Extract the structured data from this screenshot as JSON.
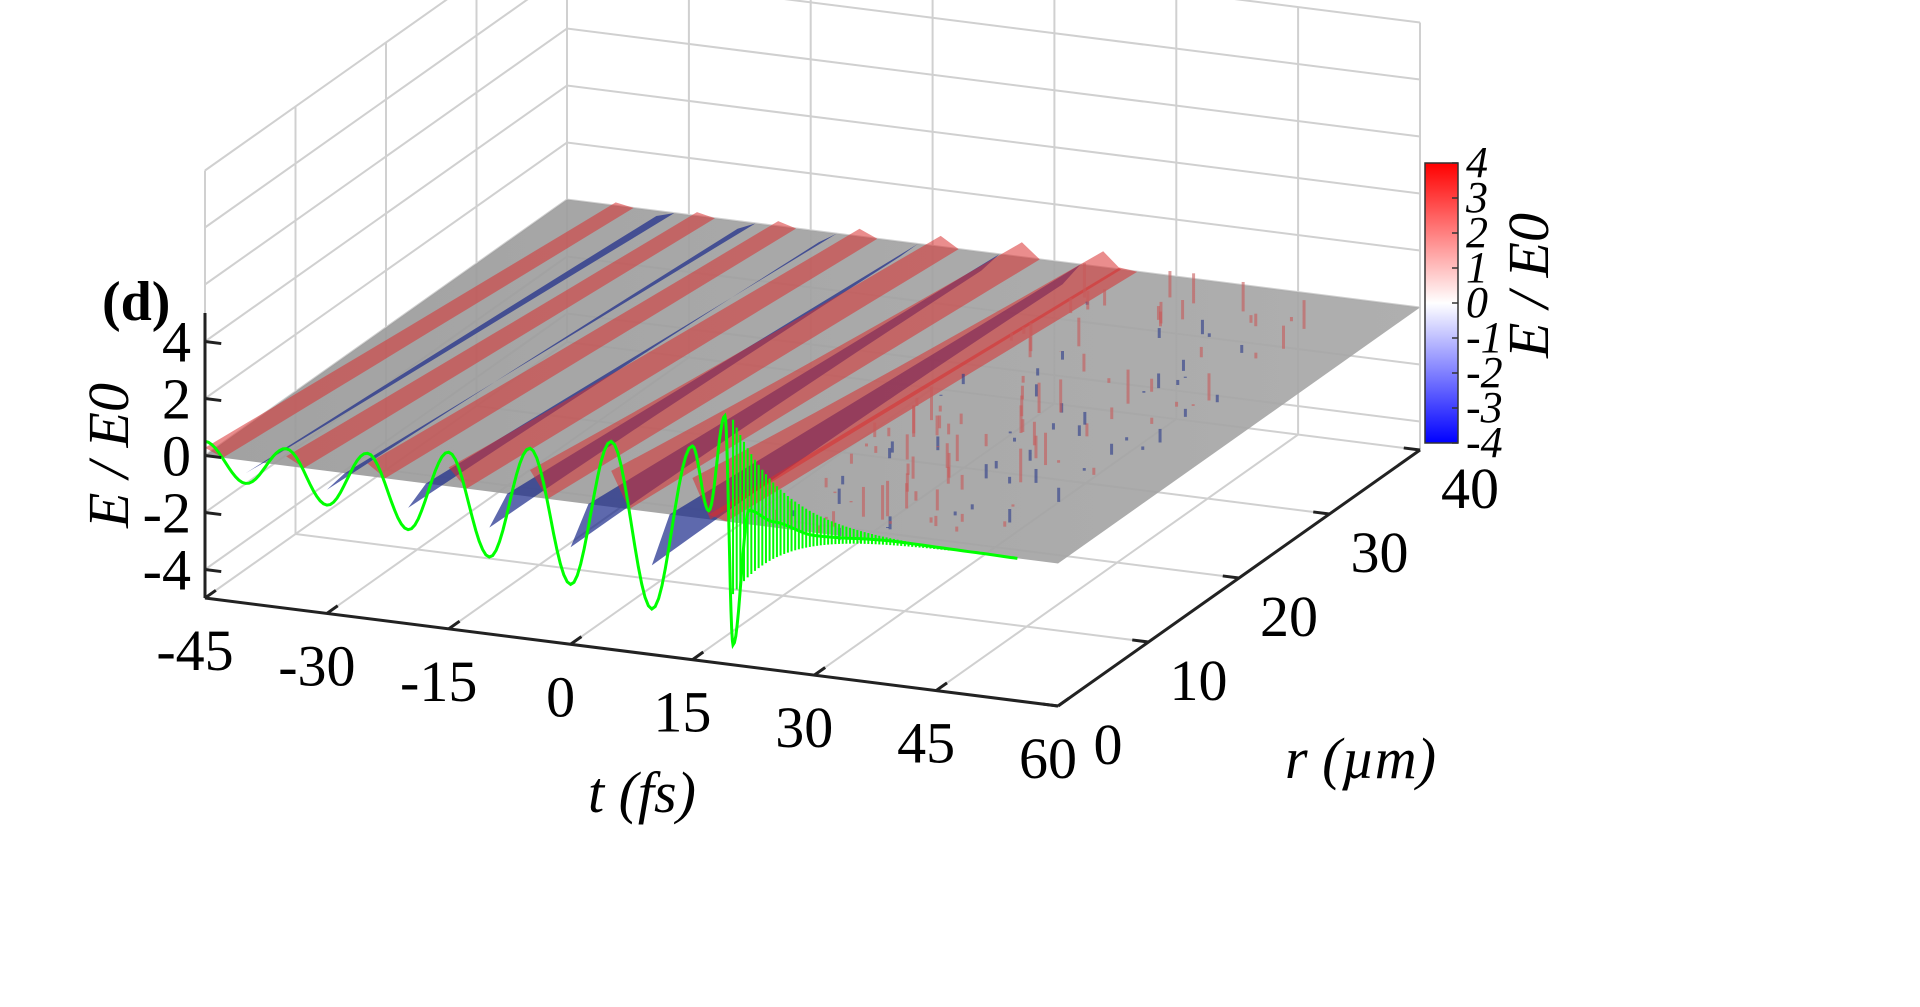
{
  "chart_data": {
    "type": "surface3d",
    "panel_label": "(d)",
    "xlabel": "t (fs)",
    "ylabel": "r (µm)",
    "zlabel": "E / E0",
    "xlim": [
      -45,
      60
    ],
    "ylim": [
      0,
      40
    ],
    "zlim": [
      -5,
      5
    ],
    "x_ticks": [
      -45,
      -30,
      -15,
      0,
      15,
      30,
      45,
      60
    ],
    "y_ticks": [
      0,
      10,
      20,
      30,
      40
    ],
    "z_ticks": [
      -4,
      -2,
      0,
      2,
      4
    ],
    "colorbar": {
      "label": "E / E0",
      "range": [
        -4,
        4
      ],
      "ticks": [
        4,
        3,
        2,
        1,
        0,
        -1,
        -2,
        -3,
        -4
      ],
      "colors": {
        "low": "#0000ff",
        "mid": "#ffffff",
        "high": "#ff0000"
      }
    },
    "series": [
      {
        "description_color": "#00ff00",
        "field_on_axis_r0": {
          "t": [
            -45,
            -40,
            -35,
            -30,
            -25,
            -20,
            -15,
            -10,
            -5,
            0,
            5,
            10,
            15,
            17,
            19,
            20,
            22,
            25,
            30,
            40,
            50,
            55
          ],
          "E": [
            0.5,
            -0.8,
            0.6,
            -1.2,
            0.8,
            -1.7,
            1.2,
            -2.3,
            1.7,
            -2.9,
            2.3,
            -3.4,
            2.5,
            0.3,
            3.7,
            -4.3,
            0.5,
            0.2,
            -0.1,
            0.05,
            0.02,
            0
          ]
        }
      }
    ],
    "surface_colors": {
      "ridge": "#d83030",
      "trough": "#1a2a8a",
      "neutral": "#8c8c8c",
      "grid": "#d0d0d0"
    },
    "colors": {
      "curve": "#00ff00",
      "axes": "#000000"
    }
  }
}
